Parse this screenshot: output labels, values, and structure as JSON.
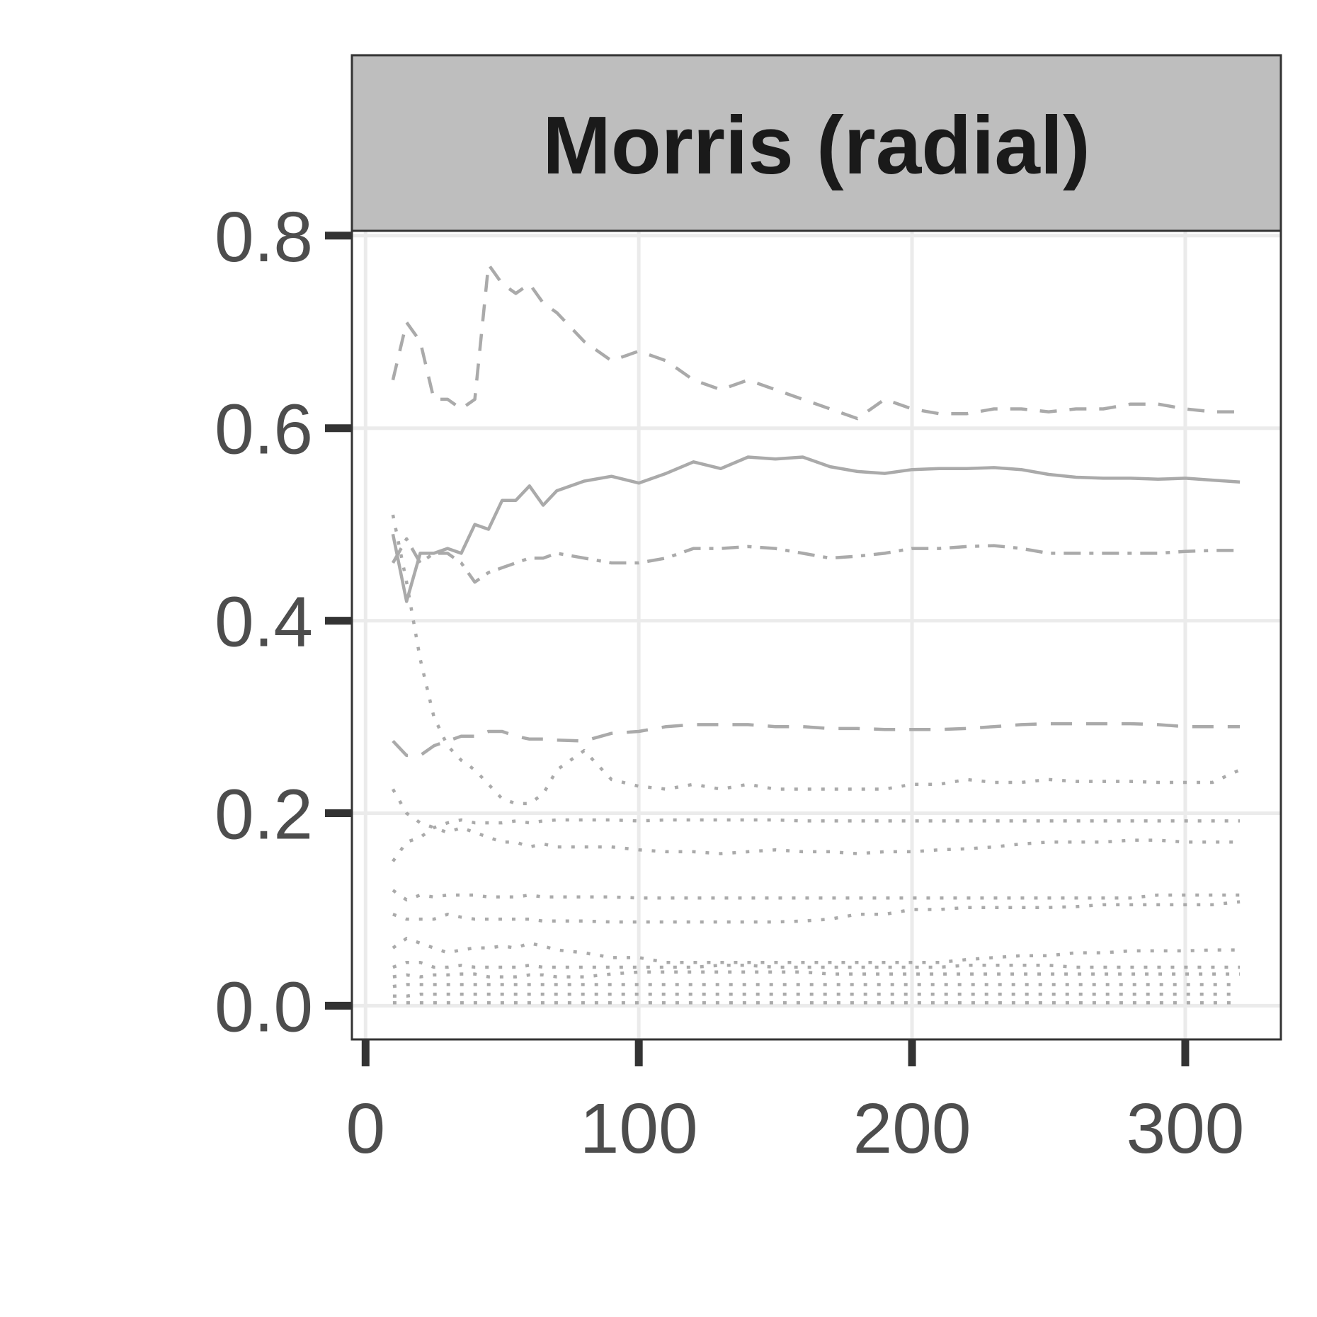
{
  "chart_data": {
    "type": "line",
    "title": "Morris (radial)",
    "xlabel": "",
    "ylabel": "",
    "xlim": [
      -5,
      335
    ],
    "ylim": [
      -0.035,
      0.805
    ],
    "x_ticks": [
      0,
      100,
      200,
      300
    ],
    "x_tick_labels": [
      "0",
      "100",
      "200",
      "300"
    ],
    "y_ticks": [
      0.0,
      0.2,
      0.4,
      0.6,
      0.8
    ],
    "y_tick_labels": [
      "0.0",
      "0.2",
      "0.4",
      "0.6",
      "0.8"
    ],
    "grid": true,
    "legend": "none",
    "line_color": "#aaaaaa",
    "strip_color": "#bebebe",
    "x": [
      10,
      15,
      20,
      25,
      30,
      35,
      40,
      45,
      50,
      55,
      60,
      65,
      70,
      80,
      90,
      100,
      110,
      120,
      130,
      140,
      150,
      160,
      170,
      180,
      190,
      200,
      210,
      220,
      230,
      240,
      250,
      260,
      270,
      280,
      290,
      300,
      310,
      320
    ],
    "series": [
      {
        "style": "longdash-gap",
        "values": [
          0.65,
          0.71,
          0.69,
          0.63,
          0.63,
          0.62,
          0.63,
          0.77,
          0.75,
          0.74,
          0.75,
          0.73,
          0.72,
          0.69,
          0.67,
          0.68,
          0.67,
          0.65,
          0.64,
          0.65,
          0.64,
          0.63,
          0.62,
          0.61,
          0.63,
          0.62,
          0.615,
          0.615,
          0.62,
          0.62,
          0.617,
          0.62,
          0.62,
          0.625,
          0.625,
          0.62,
          0.617,
          0.617
        ]
      },
      {
        "style": "solid",
        "values": [
          0.49,
          0.42,
          0.47,
          0.47,
          0.475,
          0.47,
          0.5,
          0.495,
          0.525,
          0.525,
          0.54,
          0.52,
          0.535,
          0.545,
          0.55,
          0.543,
          0.553,
          0.565,
          0.558,
          0.57,
          0.568,
          0.57,
          0.56,
          0.555,
          0.553,
          0.557,
          0.558,
          0.558,
          0.559,
          0.557,
          0.552,
          0.549,
          0.548,
          0.548,
          0.547,
          0.548,
          0.546,
          0.544
        ]
      },
      {
        "style": "dotdash",
        "values": [
          0.46,
          0.485,
          0.46,
          0.47,
          0.47,
          0.46,
          0.44,
          0.45,
          0.455,
          0.46,
          0.465,
          0.465,
          0.47,
          0.465,
          0.46,
          0.46,
          0.465,
          0.475,
          0.475,
          0.477,
          0.475,
          0.47,
          0.465,
          0.467,
          0.47,
          0.475,
          0.475,
          0.477,
          0.478,
          0.475,
          0.47,
          0.47,
          0.47,
          0.47,
          0.47,
          0.472,
          0.473,
          0.473
        ]
      },
      {
        "style": "dashed",
        "values": [
          0.275,
          0.26,
          0.26,
          0.27,
          0.275,
          0.28,
          0.28,
          0.285,
          0.285,
          0.28,
          0.277,
          0.277,
          0.276,
          0.275,
          0.283,
          0.285,
          0.29,
          0.292,
          0.292,
          0.292,
          0.29,
          0.29,
          0.288,
          0.288,
          0.287,
          0.287,
          0.287,
          0.288,
          0.29,
          0.292,
          0.293,
          0.293,
          0.293,
          0.293,
          0.292,
          0.29,
          0.29,
          0.29
        ]
      },
      {
        "style": "dotted",
        "values": [
          0.51,
          0.44,
          0.36,
          0.3,
          0.27,
          0.255,
          0.245,
          0.23,
          0.215,
          0.21,
          0.21,
          0.22,
          0.245,
          0.265,
          0.235,
          0.228,
          0.225,
          0.23,
          0.225,
          0.23,
          0.225,
          0.225,
          0.225,
          0.225,
          0.225,
          0.23,
          0.23,
          0.235,
          0.232,
          0.232,
          0.235,
          0.233,
          0.233,
          0.233,
          0.232,
          0.232,
          0.232,
          0.245
        ]
      },
      {
        "style": "dotted",
        "values": [
          0.225,
          0.2,
          0.19,
          0.185,
          0.18,
          0.185,
          0.18,
          0.175,
          0.17,
          0.17,
          0.165,
          0.168,
          0.165,
          0.165,
          0.165,
          0.162,
          0.16,
          0.16,
          0.158,
          0.16,
          0.162,
          0.16,
          0.16,
          0.158,
          0.16,
          0.16,
          0.162,
          0.163,
          0.165,
          0.168,
          0.17,
          0.17,
          0.17,
          0.172,
          0.172,
          0.17,
          0.17,
          0.17
        ]
      },
      {
        "style": "dotted",
        "values": [
          0.15,
          0.17,
          0.175,
          0.185,
          0.19,
          0.193,
          0.19,
          0.19,
          0.19,
          0.192,
          0.19,
          0.192,
          0.193,
          0.193,
          0.193,
          0.192,
          0.193,
          0.193,
          0.193,
          0.193,
          0.193,
          0.192,
          0.192,
          0.192,
          0.192,
          0.192,
          0.192,
          0.192,
          0.192,
          0.192,
          0.192,
          0.192,
          0.192,
          0.192,
          0.192,
          0.192,
          0.192,
          0.192
        ]
      },
      {
        "style": "dotted",
        "values": [
          0.12,
          0.11,
          0.115,
          0.113,
          0.115,
          0.115,
          0.115,
          0.113,
          0.113,
          0.113,
          0.115,
          0.113,
          0.113,
          0.113,
          0.113,
          0.112,
          0.112,
          0.112,
          0.112,
          0.112,
          0.112,
          0.112,
          0.112,
          0.112,
          0.112,
          0.112,
          0.112,
          0.112,
          0.112,
          0.112,
          0.112,
          0.112,
          0.112,
          0.112,
          0.115,
          0.115,
          0.115,
          0.115
        ]
      },
      {
        "style": "dotted",
        "values": [
          0.095,
          0.09,
          0.09,
          0.09,
          0.095,
          0.092,
          0.09,
          0.09,
          0.09,
          0.09,
          0.09,
          0.088,
          0.088,
          0.088,
          0.087,
          0.087,
          0.087,
          0.087,
          0.087,
          0.087,
          0.087,
          0.088,
          0.09,
          0.095,
          0.095,
          0.1,
          0.1,
          0.102,
          0.102,
          0.102,
          0.102,
          0.103,
          0.105,
          0.105,
          0.105,
          0.105,
          0.105,
          0.108
        ]
      },
      {
        "style": "dotted",
        "values": [
          0.06,
          0.07,
          0.065,
          0.06,
          0.055,
          0.058,
          0.06,
          0.06,
          0.062,
          0.06,
          0.065,
          0.062,
          0.058,
          0.055,
          0.05,
          0.05,
          0.045,
          0.045,
          0.045,
          0.045,
          0.045,
          0.045,
          0.045,
          0.045,
          0.045,
          0.045,
          0.045,
          0.048,
          0.05,
          0.052,
          0.052,
          0.055,
          0.055,
          0.057,
          0.057,
          0.057,
          0.058,
          0.058
        ]
      },
      {
        "style": "dotted",
        "values": [
          0.04,
          0.045,
          0.045,
          0.04,
          0.04,
          0.042,
          0.04,
          0.04,
          0.04,
          0.04,
          0.042,
          0.04,
          0.04,
          0.04,
          0.04,
          0.04,
          0.04,
          0.04,
          0.042,
          0.042,
          0.04,
          0.04,
          0.04,
          0.04,
          0.04,
          0.04,
          0.04,
          0.042,
          0.042,
          0.042,
          0.042,
          0.04,
          0.04,
          0.04,
          0.04,
          0.04,
          0.04,
          0.04
        ]
      },
      {
        "style": "dotted",
        "values": [
          0.03,
          0.032,
          0.03,
          0.032,
          0.032,
          0.033,
          0.033,
          0.03,
          0.03,
          0.03,
          0.032,
          0.032,
          0.03,
          0.03,
          0.033,
          0.035,
          0.035,
          0.035,
          0.035,
          0.035,
          0.035,
          0.035,
          0.033,
          0.033,
          0.033,
          0.033,
          0.033,
          0.033,
          0.033,
          0.033,
          0.033,
          0.033,
          0.033,
          0.033,
          0.033,
          0.033,
          0.033,
          0.033
        ]
      },
      {
        "style": "dotted",
        "values": [
          0.02,
          0.022,
          0.022,
          0.022,
          0.022,
          0.022,
          0.022,
          0.022,
          0.022,
          0.022,
          0.022,
          0.022,
          0.022,
          0.022,
          0.022,
          0.022,
          0.022,
          0.022,
          0.022,
          0.022,
          0.022,
          0.022,
          0.022,
          0.022,
          0.022,
          0.022,
          0.022,
          0.022,
          0.022,
          0.022,
          0.022,
          0.022,
          0.022,
          0.022,
          0.022,
          0.022,
          0.022,
          0.022
        ]
      },
      {
        "style": "dotted",
        "values": [
          0.01,
          0.01,
          0.012,
          0.012,
          0.012,
          0.012,
          0.012,
          0.012,
          0.012,
          0.012,
          0.012,
          0.012,
          0.012,
          0.012,
          0.012,
          0.012,
          0.012,
          0.012,
          0.012,
          0.012,
          0.012,
          0.012,
          0.012,
          0.012,
          0.012,
          0.012,
          0.012,
          0.012,
          0.012,
          0.012,
          0.012,
          0.012,
          0.012,
          0.012,
          0.012,
          0.012,
          0.012,
          0.012
        ]
      },
      {
        "style": "dotted",
        "values": [
          0.003,
          0.003,
          0.003,
          0.003,
          0.003,
          0.003,
          0.003,
          0.003,
          0.003,
          0.003,
          0.003,
          0.003,
          0.003,
          0.003,
          0.003,
          0.003,
          0.003,
          0.003,
          0.003,
          0.003,
          0.003,
          0.003,
          0.003,
          0.003,
          0.003,
          0.003,
          0.003,
          0.003,
          0.003,
          0.003,
          0.003,
          0.003,
          0.003,
          0.003,
          0.003,
          0.003,
          0.003,
          0.003
        ]
      }
    ]
  }
}
